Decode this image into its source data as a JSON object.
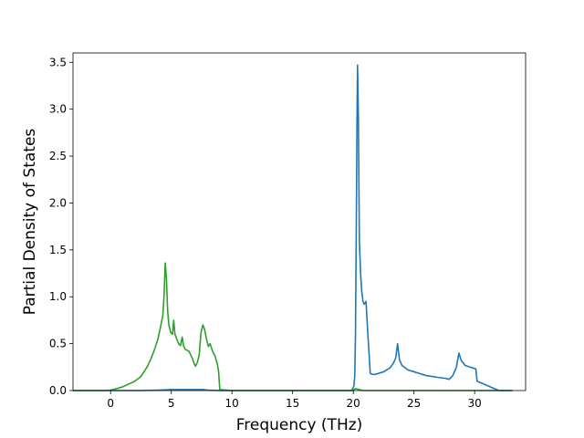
{
  "chart_data": {
    "type": "line",
    "title": "",
    "xlabel": "Frequency (THz)",
    "ylabel": "Partial Density of States",
    "xlim": [
      -3.1,
      34.2
    ],
    "ylim": [
      0.0,
      3.6
    ],
    "xticks": [
      0,
      5,
      10,
      15,
      20,
      25,
      30
    ],
    "yticks": [
      0.0,
      0.5,
      1.0,
      1.5,
      2.0,
      2.5,
      3.0,
      3.5
    ],
    "xtick_labels": [
      "0",
      "5",
      "10",
      "15",
      "20",
      "25",
      "30"
    ],
    "ytick_labels": [
      "0.0",
      "0.5",
      "1.0",
      "1.5",
      "2.0",
      "2.5",
      "3.0",
      "3.5"
    ],
    "grid": false,
    "legend": "none",
    "series": [
      {
        "color": "#1f77b4",
        "x": [
          -3.1,
          0.0,
          2.5,
          4.0,
          5.0,
          6.0,
          7.2,
          7.6,
          8.0,
          9.0,
          10.0,
          15.0,
          19.7,
          19.9,
          20.05,
          20.12,
          20.18,
          20.25,
          20.3,
          20.35,
          20.42,
          20.5,
          20.6,
          20.7,
          20.8,
          20.9,
          21.05,
          21.2,
          21.4,
          21.7,
          22.0,
          22.5,
          23.0,
          23.3,
          23.5,
          23.65,
          23.8,
          24.0,
          24.5,
          25.0,
          25.5,
          26.0,
          26.5,
          27.0,
          27.6,
          27.9,
          28.2,
          28.5,
          28.7,
          28.9,
          29.2,
          29.6,
          29.9,
          30.1,
          30.2,
          32.0,
          33.1
        ],
        "y": [
          0.0,
          0.0,
          0.0,
          0.005,
          0.01,
          0.01,
          0.01,
          0.01,
          0.005,
          0.0,
          0.0,
          0.0,
          0.0,
          0.005,
          0.05,
          0.15,
          0.6,
          1.8,
          2.8,
          3.47,
          2.9,
          1.6,
          1.25,
          1.05,
          0.95,
          0.92,
          0.95,
          0.6,
          0.18,
          0.17,
          0.18,
          0.2,
          0.24,
          0.29,
          0.35,
          0.5,
          0.33,
          0.27,
          0.22,
          0.2,
          0.18,
          0.16,
          0.15,
          0.14,
          0.13,
          0.12,
          0.16,
          0.25,
          0.4,
          0.32,
          0.27,
          0.25,
          0.24,
          0.23,
          0.1,
          0.0,
          0.0
        ]
      },
      {
        "color": "#2ca02c",
        "x": [
          -3.1,
          -0.5,
          0.0,
          0.5,
          1.0,
          1.5,
          2.0,
          2.5,
          3.0,
          3.3,
          3.6,
          3.9,
          4.1,
          4.3,
          4.4,
          4.5,
          4.6,
          4.7,
          4.8,
          4.95,
          5.1,
          5.2,
          5.3,
          5.45,
          5.6,
          5.75,
          5.9,
          6.0,
          6.15,
          6.3,
          6.45,
          6.6,
          6.75,
          6.9,
          7.0,
          7.15,
          7.3,
          7.45,
          7.6,
          7.75,
          7.9,
          8.05,
          8.2,
          8.4,
          8.6,
          8.8,
          8.9,
          9.0,
          10.0,
          15.0,
          19.9,
          20.2,
          20.5,
          20.8,
          21.0,
          25.0,
          33.1
        ],
        "y": [
          0.0,
          0.0,
          0.005,
          0.02,
          0.04,
          0.07,
          0.1,
          0.15,
          0.25,
          0.33,
          0.43,
          0.55,
          0.67,
          0.8,
          1.0,
          1.36,
          1.2,
          0.85,
          0.7,
          0.62,
          0.6,
          0.75,
          0.6,
          0.55,
          0.5,
          0.48,
          0.57,
          0.48,
          0.44,
          0.43,
          0.42,
          0.38,
          0.34,
          0.28,
          0.26,
          0.3,
          0.38,
          0.62,
          0.7,
          0.65,
          0.55,
          0.47,
          0.5,
          0.42,
          0.37,
          0.28,
          0.2,
          0.01,
          0.0,
          0.0,
          0.0,
          0.02,
          0.01,
          0.0,
          0.0,
          0.0,
          0.0
        ]
      }
    ]
  }
}
